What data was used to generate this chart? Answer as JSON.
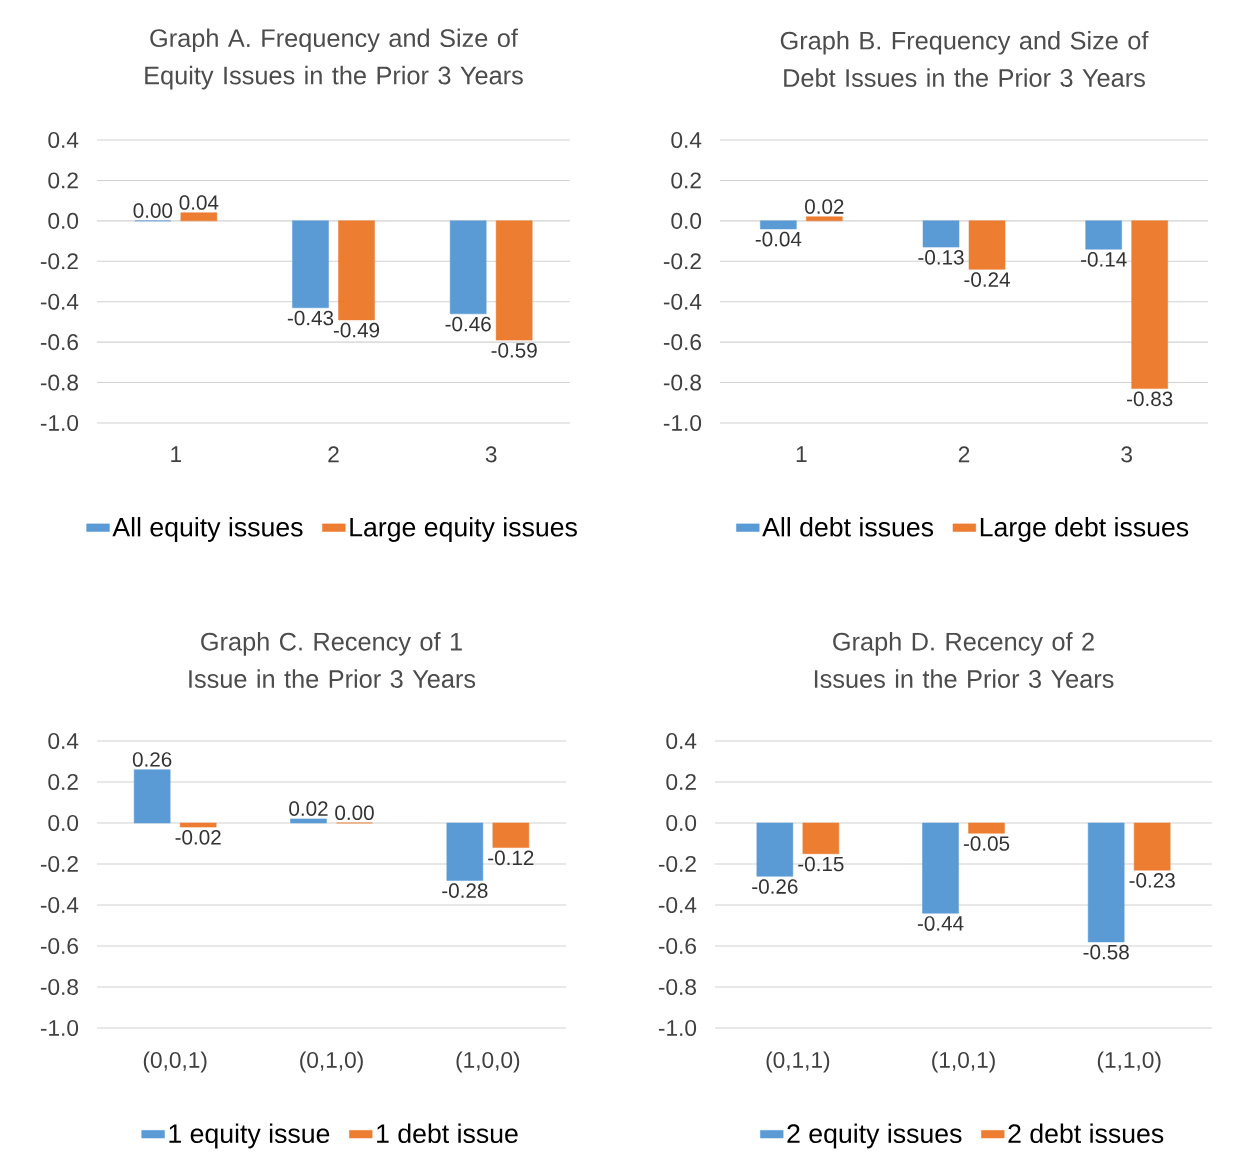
{
  "chart_data": [
    {
      "type": "bar",
      "title": "Graph A. Frequency and Size of Equity Issues in the Prior 3 Years",
      "categories": [
        "1",
        "2",
        "3"
      ],
      "series": [
        {
          "name": "All equity issues",
          "color": "#5b9bd5",
          "values": [
            0.0,
            -0.43,
            -0.46
          ],
          "value_labels": [
            "0.00",
            "-0.43",
            "-0.46"
          ]
        },
        {
          "name": "Large equity issues",
          "color": "#ed7d31",
          "values": [
            0.04,
            -0.49,
            -0.59
          ],
          "value_labels": [
            "0.04",
            "-0.49",
            "-0.59"
          ]
        }
      ],
      "ylim": [
        -1.0,
        0.4
      ],
      "yticks": [
        {
          "value": 0.4,
          "label": "0.4"
        },
        {
          "value": 0.2,
          "label": "0.2"
        },
        {
          "value": 0,
          "label": "0.0"
        },
        {
          "value": -0.2,
          "label": "-0.2"
        },
        {
          "value": -0.4,
          "label": "-0.4"
        },
        {
          "value": -0.6,
          "label": "-0.6"
        },
        {
          "value": -0.8,
          "label": "-0.8"
        },
        {
          "value": -1.0,
          "label": "-1.0"
        }
      ],
      "grid": "y",
      "legend": "bottom"
    },
    {
      "type": "bar",
      "title": "Graph B. Frequency and Size of Debt Issues in the Prior 3 Years",
      "categories": [
        "1",
        "2",
        "3"
      ],
      "series": [
        {
          "name": "All debt issues",
          "color": "#5b9bd5",
          "values": [
            -0.04,
            -0.13,
            -0.14
          ],
          "value_labels": [
            "-0.04",
            "-0.13",
            "-0.14"
          ]
        },
        {
          "name": "Large debt issues",
          "color": "#ed7d31",
          "values": [
            0.02,
            -0.24,
            -0.83
          ],
          "value_labels": [
            "0.02",
            "-0.24",
            "-0.83"
          ]
        }
      ],
      "ylim": [
        -1.0,
        0.4
      ],
      "yticks": [
        {
          "value": 0.4,
          "label": "0.4"
        },
        {
          "value": 0.2,
          "label": "0.2"
        },
        {
          "value": 0,
          "label": "0.0"
        },
        {
          "value": -0.2,
          "label": "-0.2"
        },
        {
          "value": -0.4,
          "label": "-0.4"
        },
        {
          "value": -0.6,
          "label": "-0.6"
        },
        {
          "value": -0.8,
          "label": "-0.8"
        },
        {
          "value": -1.0,
          "label": "-1.0"
        }
      ],
      "grid": "y",
      "legend": "bottom"
    },
    {
      "type": "bar",
      "title": "Graph C. Recency of 1 Issue in the Prior 3 Years",
      "categories": [
        "(0,0,1)",
        "(0,1,0)",
        "(1,0,0)"
      ],
      "series": [
        {
          "name": "1 equity issue",
          "color": "#5b9bd5",
          "values": [
            0.26,
            0.02,
            -0.28
          ],
          "value_labels": [
            "0.26",
            "0.02",
            "-0.28"
          ]
        },
        {
          "name": "1 debt issue",
          "color": "#ed7d31",
          "values": [
            -0.02,
            0.0,
            -0.12
          ],
          "value_labels": [
            "-0.02",
            "0.00",
            "-0.12"
          ]
        }
      ],
      "ylim": [
        -1.0,
        0.4
      ],
      "yticks": [
        {
          "value": 0.4,
          "label": "0.4"
        },
        {
          "value": 0.2,
          "label": "0.2"
        },
        {
          "value": 0,
          "label": "0.0"
        },
        {
          "value": -0.2,
          "label": "-0.2"
        },
        {
          "value": -0.4,
          "label": "-0.4"
        },
        {
          "value": -0.6,
          "label": "-0.6"
        },
        {
          "value": -0.8,
          "label": "-0.8"
        },
        {
          "value": -1.0,
          "label": "-1.0"
        }
      ],
      "grid": "y",
      "legend": "bottom"
    },
    {
      "type": "bar",
      "title": "Graph D. Recency of 2 Issues in the Prior 3 Years",
      "categories": [
        "(0,1,1)",
        "(1,0,1)",
        "(1,1,0)"
      ],
      "series": [
        {
          "name": "2 equity issues",
          "color": "#5b9bd5",
          "values": [
            -0.26,
            -0.44,
            -0.58
          ],
          "value_labels": [
            "-0.26",
            "-0.44",
            "-0.58"
          ]
        },
        {
          "name": "2 debt issues",
          "color": "#ed7d31",
          "values": [
            -0.15,
            -0.05,
            -0.23
          ],
          "value_labels": [
            "-0.15",
            "-0.05",
            "-0.23"
          ]
        }
      ],
      "ylim": [
        -1.0,
        0.4
      ],
      "yticks": [
        {
          "value": 0.4,
          "label": "0.4"
        },
        {
          "value": 0.2,
          "label": "0.2"
        },
        {
          "value": 0,
          "label": "0.0"
        },
        {
          "value": -0.2,
          "label": "-0.2"
        },
        {
          "value": -0.4,
          "label": "-0.4"
        },
        {
          "value": -0.6,
          "label": "-0.6"
        },
        {
          "value": -0.8,
          "label": "-0.8"
        },
        {
          "value": -1.0,
          "label": "-1.0"
        }
      ],
      "grid": "y",
      "legend": "bottom"
    }
  ]
}
